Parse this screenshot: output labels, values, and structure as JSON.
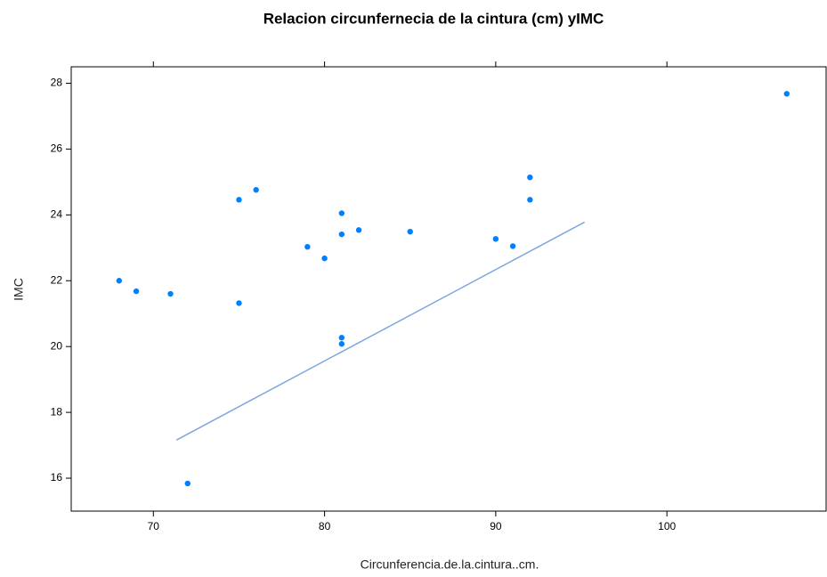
{
  "chart_data": {
    "type": "scatter",
    "title": "Relacion circunfernecia de la cintura (cm) yIMC",
    "x_label": "Circunferencia.de.la.cintura..cm.",
    "y_label": "IMC",
    "x": [
      68,
      69,
      71,
      72,
      75,
      75,
      76,
      79,
      80,
      81,
      81,
      81,
      81,
      82,
      85,
      90,
      91,
      92,
      92,
      107
    ],
    "y": [
      22.0,
      21.68,
      21.6,
      15.84,
      24.46,
      21.32,
      24.76,
      23.03,
      22.68,
      24.05,
      23.41,
      20.27,
      20.08,
      23.54,
      23.49,
      23.27,
      23.05,
      25.14,
      24.46,
      27.68
    ],
    "color": "#0080ff",
    "trend": {
      "x": [
        71.35,
        95.19
      ],
      "y": [
        17.16,
        23.78
      ],
      "color": "#7ea6e0"
    },
    "xlim": [
      65.2,
      109.3
    ],
    "ylim": [
      15.0,
      28.5
    ],
    "xticks": [
      70,
      80,
      90,
      100
    ],
    "yticks": [
      16,
      18,
      20,
      22,
      24,
      26,
      28
    ],
    "grid": false
  }
}
